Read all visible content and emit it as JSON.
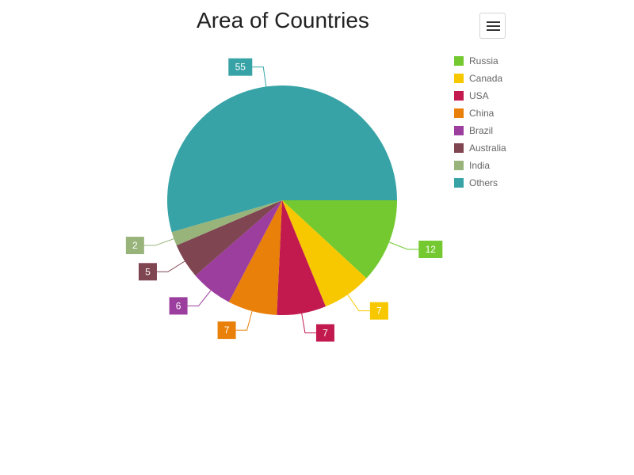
{
  "chart_data": {
    "type": "pie",
    "title": "Area of Countries",
    "series": [
      {
        "name": "Russia",
        "value": 12,
        "color": "#73c92f"
      },
      {
        "name": "Canada",
        "value": 7,
        "color": "#f7c800"
      },
      {
        "name": "USA",
        "value": 7,
        "color": "#c2194f"
      },
      {
        "name": "China",
        "value": 7,
        "color": "#e8800a"
      },
      {
        "name": "Brazil",
        "value": 6,
        "color": "#9c3e9e"
      },
      {
        "name": "Australia",
        "value": 5,
        "color": "#7f4551"
      },
      {
        "name": "India",
        "value": 2,
        "color": "#98b47b"
      },
      {
        "name": "Others",
        "value": 55,
        "color": "#37a3a6"
      }
    ],
    "legend_position": "top-right",
    "start_angle_deg": 0,
    "direction": "clockwise"
  },
  "toolbar": {
    "menu_icon": "hamburger-menu-icon"
  }
}
